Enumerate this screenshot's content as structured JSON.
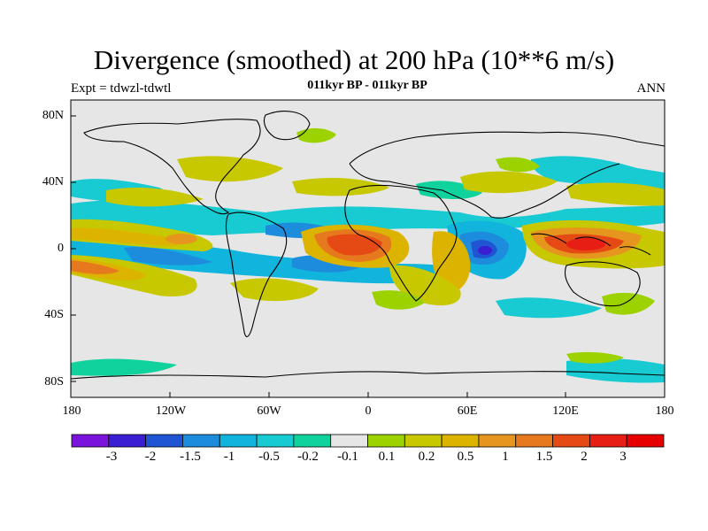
{
  "header": {
    "title": "Divergence (smoothed) at 200 hPa (10**6 m/s)",
    "experiment": "Expt = tdwzl-tdwtl",
    "subtitle": "011kyr BP - 011kyr BP",
    "season": "ANN"
  },
  "axes": {
    "lat_labels": [
      "80N",
      "40N",
      "0",
      "40S",
      "80S"
    ],
    "lon_labels": [
      "180",
      "120W",
      "60W",
      "0",
      "60E",
      "120E",
      "180"
    ]
  },
  "colorbar": {
    "labels": [
      "-3",
      "-2",
      "-1.5",
      "-1",
      "-0.5",
      "-0.2",
      "-0.1",
      "0.1",
      "0.2",
      "0.5",
      "1",
      "1.5",
      "2",
      "3"
    ],
    "colors": [
      "#7a14dc",
      "#3a1ed2",
      "#1f55d2",
      "#1e8cdc",
      "#10b4dc",
      "#18cad2",
      "#10d29c",
      "#e6e6e6",
      "#9cd200",
      "#c8c800",
      "#dcb400",
      "#e6961e",
      "#e6781e",
      "#e64a14",
      "#e61e14",
      "#e60000"
    ]
  },
  "colors": {
    "neutral": "#e6e6e6",
    "coast": "#000000"
  }
}
